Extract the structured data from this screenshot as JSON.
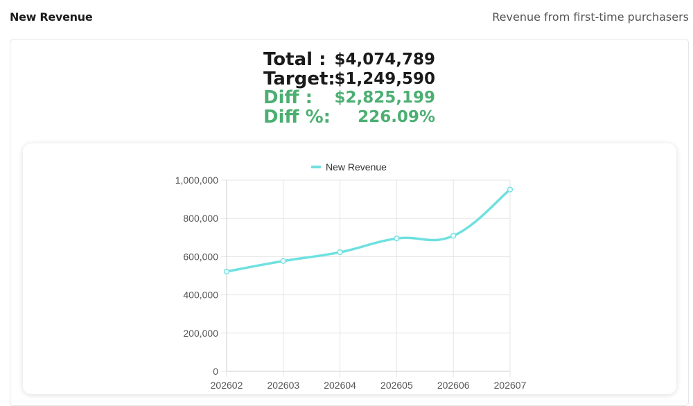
{
  "header": {
    "title": "New Revenue",
    "subtitle": "Revenue from first-time purchasers"
  },
  "summary": [
    {
      "label": "Total :",
      "value": "$4,074,789",
      "highlight": false
    },
    {
      "label": "Target:",
      "value": "$1,249,590",
      "highlight": false
    },
    {
      "label": "Diff :",
      "value": "$2,825,199",
      "highlight": true
    },
    {
      "label": "Diff %:",
      "value": "226.09%",
      "highlight": true
    }
  ],
  "colors": {
    "series": "#6fe0e0",
    "positive": "#4caf72",
    "grid": "#e5e5e5"
  },
  "chart_data": {
    "type": "line",
    "categories": [
      "202602",
      "202603",
      "202604",
      "202605",
      "202606",
      "202607"
    ],
    "series": [
      {
        "name": "New Revenue",
        "values": [
          522000,
          577000,
          623000,
          695000,
          709000,
          951000
        ]
      }
    ],
    "ylim": [
      0,
      1000000
    ],
    "yticks": [
      "0",
      "200,000",
      "400,000",
      "600,000",
      "800,000",
      "1,000,000"
    ],
    "ytick_values": [
      0,
      200000,
      400000,
      600000,
      800000,
      1000000
    ],
    "grid": true,
    "legend": "top-center"
  }
}
